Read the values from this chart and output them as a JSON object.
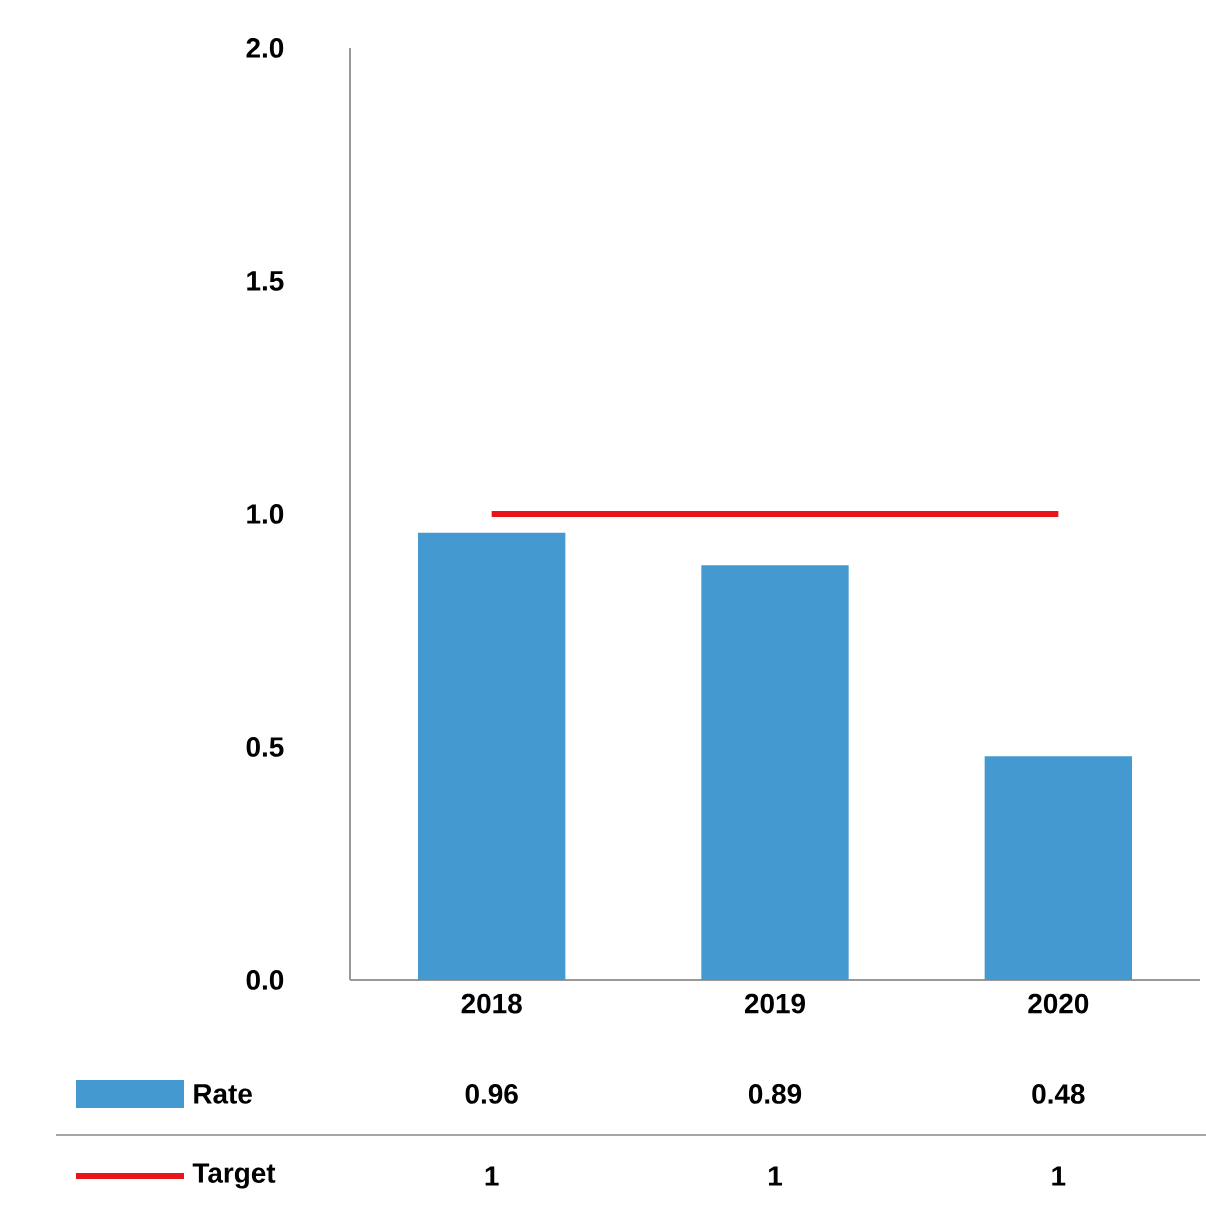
{
  "chart_data": {
    "type": "bar",
    "categories": [
      "2018",
      "2019",
      "2020"
    ],
    "series": [
      {
        "name": "Rate",
        "color": "#4499d0",
        "values": [
          0.96,
          0.89,
          0.48
        ]
      },
      {
        "name": "Target",
        "type": "line",
        "color": "#e8141b",
        "values": [
          1,
          1,
          1
        ]
      }
    ],
    "ylim": [
      0,
      2
    ],
    "yticks": [
      {
        "value": 0,
        "label": "0.0"
      },
      {
        "value": 0.5,
        "label": "0.5"
      },
      {
        "value": 1,
        "label": "1.0"
      },
      {
        "value": 1.5,
        "label": "1.5"
      },
      {
        "value": 2,
        "label": "2.0"
      }
    ],
    "data_labels": true,
    "legend": "bottom",
    "grid": false,
    "marker": "none",
    "line_style": "solid"
  }
}
